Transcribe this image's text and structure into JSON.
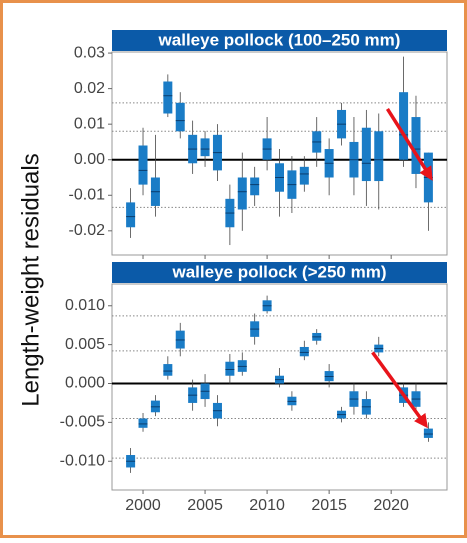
{
  "ylabel": "Length-weight residuals",
  "chart_data": [
    {
      "type": "box",
      "title": "walleye pollock (100–250 mm)",
      "x": [
        1999,
        2000,
        2001,
        2002,
        2003,
        2004,
        2005,
        2006,
        2007,
        2008,
        2009,
        2010,
        2011,
        2012,
        2013,
        2014,
        2015,
        2016,
        2017,
        2018,
        2019,
        2021,
        2022,
        2023
      ],
      "low": [
        -0.022,
        -0.01,
        -0.016,
        0.012,
        0.006,
        -0.004,
        -0.002,
        -0.006,
        -0.024,
        -0.02,
        -0.013,
        -0.003,
        -0.016,
        -0.015,
        -0.009,
        -0.002,
        -0.01,
        0.004,
        -0.01,
        -0.013,
        -0.014,
        -0.002,
        -0.008,
        -0.02
      ],
      "q1": [
        -0.019,
        -0.007,
        -0.013,
        0.013,
        0.008,
        -0.001,
        0.001,
        -0.003,
        -0.019,
        -0.014,
        -0.01,
        0.0,
        -0.009,
        -0.011,
        -0.007,
        0.002,
        -0.005,
        0.006,
        -0.005,
        -0.006,
        -0.006,
        0.0,
        -0.004,
        -0.012
      ],
      "median": [
        -0.016,
        -0.003,
        -0.009,
        0.018,
        0.011,
        0.003,
        0.003,
        0.002,
        -0.015,
        -0.009,
        -0.007,
        0.003,
        -0.005,
        -0.007,
        -0.004,
        0.005,
        -0.001,
        0.01,
        0.0,
        -0.001,
        0.0,
        0.007,
        0.003,
        -0.005
      ],
      "q3": [
        -0.012,
        0.004,
        -0.005,
        0.022,
        0.016,
        0.007,
        0.006,
        0.007,
        -0.011,
        -0.005,
        -0.005,
        0.006,
        -0.001,
        -0.003,
        -0.002,
        0.008,
        0.003,
        0.014,
        0.005,
        0.009,
        0.008,
        0.019,
        0.012,
        0.002
      ],
      "high": [
        -0.008,
        0.009,
        0.007,
        0.024,
        0.019,
        0.011,
        0.008,
        0.01,
        -0.007,
        0.002,
        -0.002,
        0.012,
        0.003,
        0.001,
        0.001,
        0.012,
        0.006,
        0.016,
        0.012,
        0.014,
        0.013,
        0.029,
        0.018,
        0.002
      ],
      "color": "#1a7cc6",
      "xlim": [
        1997.5,
        2024.5
      ],
      "xticks": [
        2000,
        2005,
        2010,
        2015,
        2020
      ],
      "xtick_labels": false,
      "ylim": [
        -0.0268,
        0.0303
      ],
      "yticks": [
        0.03,
        0.02,
        0.01,
        {
          "value": 0,
          "label": "0.00"
        },
        -0.01,
        -0.02
      ],
      "zero_line": true,
      "ref_lines": [
        0.016,
        0.008,
        -0.0134
      ],
      "arrow": {
        "from": [
          2019.7,
          0.0143
        ],
        "to": [
          2023.2,
          -0.0051
        ],
        "color": "#e8141b"
      }
    },
    {
      "type": "box",
      "title": "walleye pollock (>250 mm)",
      "x": [
        1999,
        2000,
        2001,
        2002,
        2003,
        2004,
        2005,
        2006,
        2007,
        2008,
        2009,
        2010,
        2011,
        2012,
        2013,
        2014,
        2015,
        2016,
        2017,
        2018,
        2019,
        2021,
        2022,
        2023
      ],
      "low": [
        -0.0115,
        -0.0062,
        -0.0042,
        0.0005,
        0.0035,
        -0.0035,
        -0.003,
        -0.0055,
        0.0,
        0.001,
        0.005,
        0.009,
        -0.0005,
        -0.0035,
        0.003,
        0.005,
        -0.0005,
        -0.005,
        -0.004,
        -0.0045,
        0.0035,
        -0.003,
        -0.0035,
        -0.0075
      ],
      "q1": [
        -0.0108,
        -0.0057,
        -0.0037,
        0.001,
        0.0045,
        -0.0025,
        -0.002,
        -0.0045,
        0.001,
        0.0015,
        0.006,
        0.0093,
        0.0,
        -0.0028,
        0.0035,
        0.0055,
        0.0003,
        -0.0045,
        -0.003,
        -0.004,
        0.004,
        -0.0025,
        -0.003,
        -0.007
      ],
      "median": [
        -0.01,
        -0.0052,
        -0.003,
        0.0016,
        0.0056,
        -0.0015,
        -0.001,
        -0.0035,
        0.0018,
        0.0022,
        0.007,
        0.01,
        0.0005,
        -0.0023,
        0.004,
        0.006,
        0.0009,
        -0.004,
        -0.002,
        -0.003,
        0.0045,
        -0.0015,
        -0.002,
        -0.0065
      ],
      "q3": [
        -0.0092,
        -0.0045,
        -0.0022,
        0.0025,
        0.0068,
        -0.0005,
        0.0,
        -0.0025,
        0.0028,
        0.003,
        0.008,
        0.0107,
        0.001,
        -0.0017,
        0.0047,
        0.0065,
        0.0016,
        -0.0035,
        -0.001,
        -0.002,
        0.005,
        -0.0005,
        -0.001,
        -0.0058
      ],
      "high": [
        -0.0083,
        -0.0038,
        -0.0015,
        0.0035,
        0.0078,
        0.0005,
        0.0012,
        -0.0015,
        0.0038,
        0.004,
        0.009,
        0.0113,
        0.002,
        -0.001,
        0.0055,
        0.007,
        0.0025,
        -0.003,
        0.0,
        -0.001,
        0.006,
        0.0,
        0.0,
        -0.005
      ],
      "color": "#1a7cc6",
      "xlim": [
        1997.5,
        2024.5
      ],
      "xticks": [
        2000,
        2005,
        2010,
        2015,
        2020
      ],
      "xtick_labels": true,
      "ylim": [
        -0.0137,
        0.0128
      ],
      "yticks": [
        {
          "value": 0.01,
          "label": "0.010"
        },
        {
          "value": 0.005,
          "label": "0.005"
        },
        {
          "value": 0,
          "label": "0.000"
        },
        {
          "value": -0.005,
          "label": "-0.005"
        },
        {
          "value": -0.01,
          "label": "-0.010"
        }
      ],
      "zero_line": true,
      "ref_lines": [
        0.0087,
        0.0042,
        -0.0045,
        -0.0096
      ],
      "arrow": {
        "from": [
          2018.5,
          0.004
        ],
        "to": [
          2022.8,
          -0.0054
        ],
        "color": "#e8141b"
      }
    }
  ]
}
